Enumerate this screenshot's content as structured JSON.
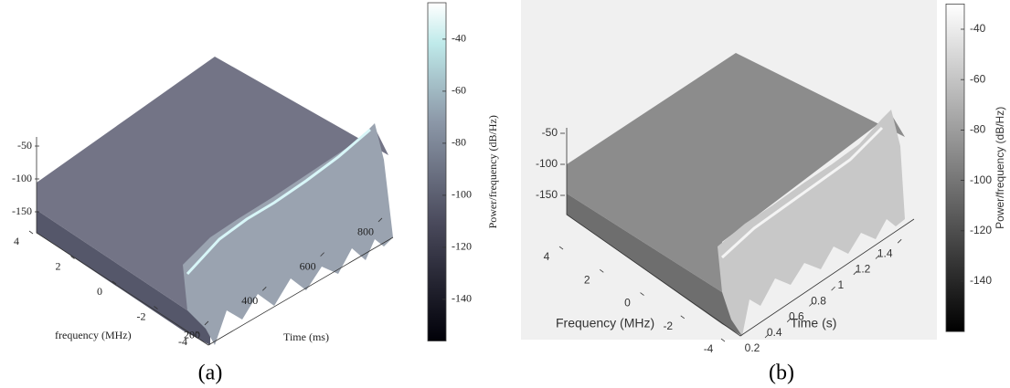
{
  "chart_data": [
    {
      "type": "surface3d",
      "caption": "(a)",
      "xlabel": "Time (ms)",
      "ylabel": "frequency (MHz)",
      "colorbar_label": "Power/frequency (dB/Hz)",
      "xlim": [
        100,
        900
      ],
      "xticks": [
        200,
        400,
        600,
        800
      ],
      "ylim": [
        -5,
        5
      ],
      "yticks": [
        4,
        2,
        0,
        -2,
        -4
      ],
      "zlim": [
        -160,
        -40
      ],
      "zticks": [
        -50,
        -100,
        -150
      ],
      "clim": [
        -156,
        -26
      ],
      "cticks": [
        -40,
        -60,
        -80,
        -100,
        -120,
        -140
      ],
      "colormap": "bone"
    },
    {
      "type": "surface3d",
      "caption": "(b)",
      "xlabel": "Time (s)",
      "ylabel": "Frequency (MHz)",
      "colorbar_label": "Power/frequency (dB/Hz)",
      "xlim": [
        0.1,
        1.5
      ],
      "xticks": [
        0.2,
        0.4,
        0.6,
        0.8,
        1,
        1.2,
        1.4
      ],
      "ylim": [
        -5,
        5
      ],
      "yticks": [
        4,
        2,
        0,
        -2,
        -4
      ],
      "zlim": [
        -160,
        -40
      ],
      "zticks": [
        -50,
        -100,
        -150
      ],
      "clim": [
        -160,
        -30
      ],
      "cticks": [
        -40,
        -60,
        -80,
        -100,
        -120,
        -140
      ],
      "colormap": "gray"
    }
  ]
}
